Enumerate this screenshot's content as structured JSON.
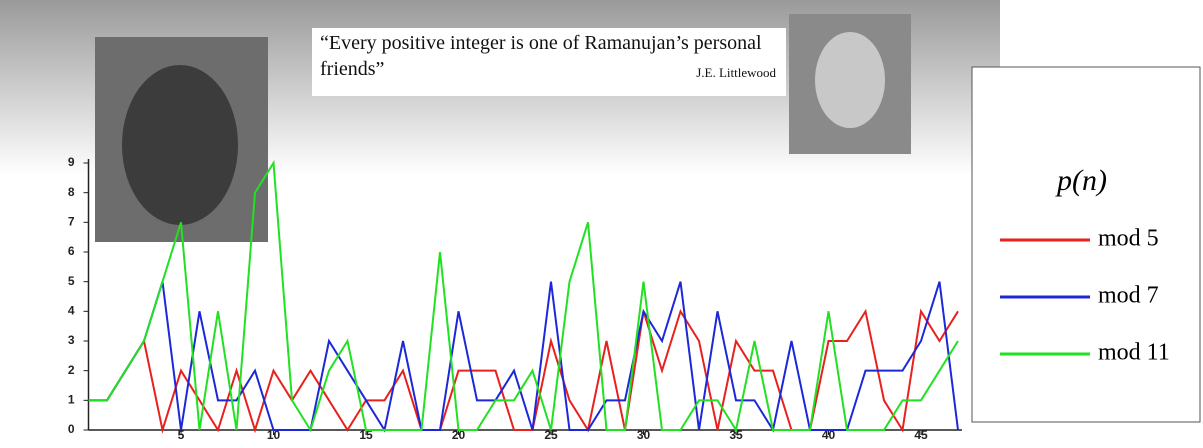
{
  "quote": "“Every positive integer is one of Ramanujan’s personal friends”",
  "attribution": "J.E. Littlewood",
  "chart_data": {
    "type": "line",
    "legend_title": "p(n)",
    "legend": "right",
    "x": [
      0,
      1,
      2,
      3,
      4,
      5,
      6,
      7,
      8,
      9,
      10,
      11,
      12,
      13,
      14,
      15,
      16,
      17,
      18,
      19,
      20,
      21,
      22,
      23,
      24,
      25,
      26,
      27,
      28,
      29,
      30,
      31,
      32,
      33,
      34,
      35,
      36,
      37,
      38,
      39,
      40,
      41,
      42,
      43,
      44,
      45,
      46,
      47
    ],
    "series": [
      {
        "name": "mod 5",
        "color": "#e8201e",
        "values": [
          1,
          1,
          2,
          3,
          0,
          2,
          1,
          0,
          2,
          0,
          2,
          1,
          2,
          1,
          0,
          1,
          1,
          2,
          0,
          0,
          2,
          2,
          2,
          0,
          0,
          3,
          1,
          0,
          3,
          0,
          4,
          2,
          4,
          3,
          0,
          3,
          2,
          2,
          0,
          0,
          3,
          3,
          4,
          1,
          0,
          4,
          3,
          4
        ]
      },
      {
        "name": "mod 7",
        "color": "#1c28d8",
        "values": [
          1,
          1,
          2,
          3,
          5,
          0,
          4,
          1,
          1,
          2,
          0,
          0,
          0,
          3,
          2,
          1,
          0,
          3,
          0,
          0,
          4,
          1,
          1,
          2,
          0,
          5,
          0,
          0,
          1,
          1,
          4,
          3,
          5,
          0,
          4,
          1,
          1,
          0,
          3,
          0,
          0,
          0,
          2,
          2,
          2,
          3,
          5,
          0
        ]
      },
      {
        "name": "mod 11",
        "color": "#22e022",
        "values": [
          1,
          1,
          2,
          3,
          5,
          7,
          0,
          4,
          0,
          8,
          9,
          1,
          0,
          2,
          3,
          0,
          0,
          0,
          0,
          6,
          0,
          0,
          1,
          1,
          2,
          0,
          5,
          7,
          0,
          0,
          5,
          0,
          0,
          1,
          1,
          0,
          3,
          0,
          0,
          0,
          4,
          0,
          0,
          0,
          1,
          1,
          2,
          3
        ]
      }
    ],
    "xlim": [
      0,
      47
    ],
    "xticks": [
      5,
      10,
      15,
      20,
      25,
      30,
      35,
      40,
      45
    ],
    "ylim": [
      0,
      9
    ],
    "yticks": [
      0,
      1,
      2,
      3,
      4,
      5,
      6,
      7,
      8,
      9
    ]
  }
}
